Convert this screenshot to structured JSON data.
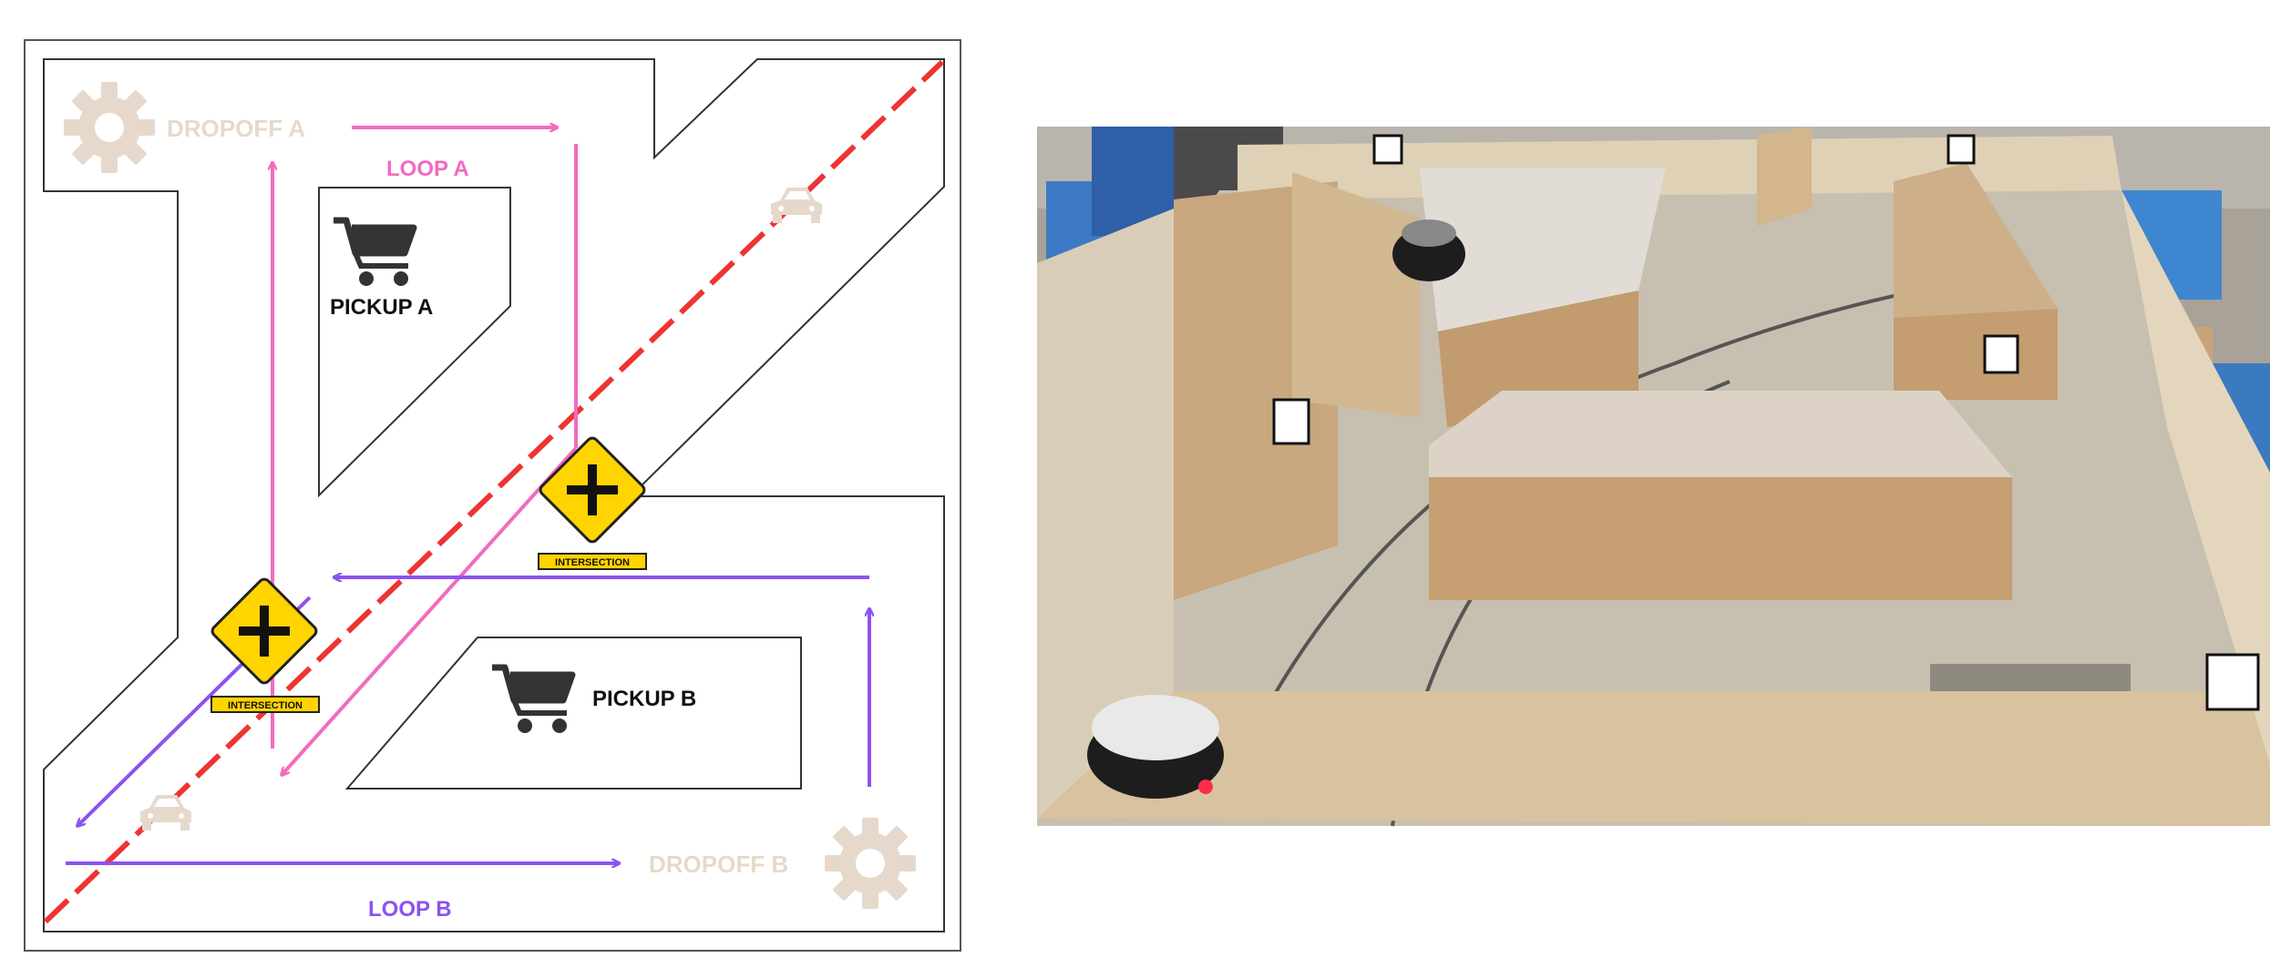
{
  "map": {
    "labels": {
      "dropoff_a": "DROPOFF A",
      "dropoff_b": "DROPOFF B",
      "pickup_a": "PICKUP A",
      "pickup_b": "PICKUP B",
      "loop_a": "LOOP A",
      "loop_b": "LOOP B",
      "intersection_1": "INTERSECTION",
      "intersection_2": "INTERSECTION"
    },
    "colors": {
      "loop_a": "#f26bbf",
      "loop_b": "#8c52f0",
      "divider": "#ee3333",
      "landmark": "#e6d9cc",
      "sign": "#ffd400",
      "outline": "#333333"
    },
    "icons": [
      "gear-icon",
      "cart-icon",
      "car-icon",
      "intersection-sign-icon"
    ]
  },
  "photo": {
    "icons": [
      "robot-icon",
      "aruco-marker-icon",
      "wall-panel",
      "floor-track"
    ]
  }
}
